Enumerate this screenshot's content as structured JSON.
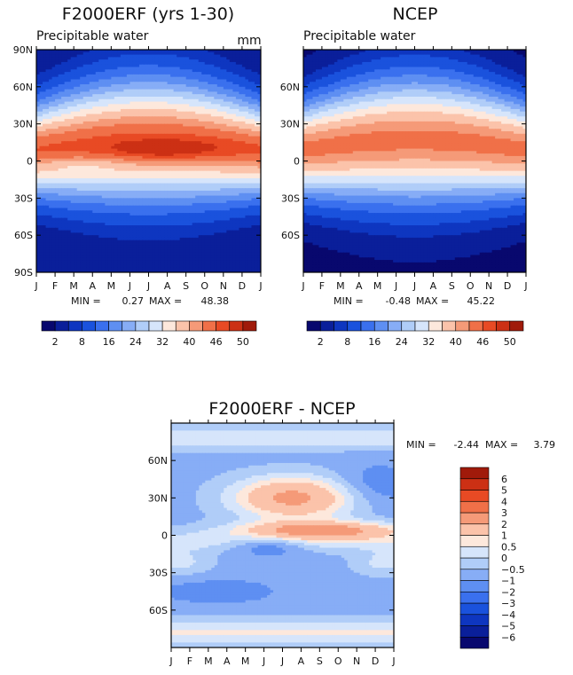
{
  "chart_data": [
    {
      "type": "heatmap",
      "title": "F2000ERF (yrs 1-30)",
      "subtitle": "Precipitable water",
      "units": "mm",
      "min_label": "MIN =",
      "min_value": "0.27",
      "max_label": "MAX =",
      "max_value": "48.38",
      "x_ticks": [
        "J",
        "F",
        "M",
        "A",
        "M",
        "J",
        "J",
        "A",
        "S",
        "O",
        "N",
        "D",
        "J"
      ],
      "y_ticks_left": [
        "90N",
        "60N",
        "30N",
        "0",
        "30S",
        "60S",
        "90S"
      ],
      "y_ticks_right": [],
      "ylim": [
        -90,
        90
      ],
      "field": "model"
    },
    {
      "type": "heatmap",
      "title": "NCEP",
      "subtitle": "Precipitable water",
      "units": "",
      "min_label": "MIN =",
      "min_value": "-0.48",
      "max_label": "MAX =",
      "max_value": "45.22",
      "x_ticks": [
        "J",
        "F",
        "M",
        "A",
        "M",
        "J",
        "J",
        "A",
        "S",
        "O",
        "N",
        "D",
        "J"
      ],
      "y_ticks_left": [],
      "y_ticks_right": [
        "60N",
        "30N",
        "0",
        "30S",
        "60S"
      ],
      "ylim": [
        -90,
        90
      ],
      "field": "ncep"
    },
    {
      "type": "heatmap",
      "title": "F2000ERF - NCEP",
      "subtitle": "",
      "units": "",
      "min_label": "MIN =",
      "min_value": "-2.44",
      "max_label": "MAX =",
      "max_value": "3.79",
      "x_ticks": [
        "J",
        "F",
        "M",
        "A",
        "M",
        "J",
        "J",
        "A",
        "S",
        "O",
        "N",
        "D",
        "J"
      ],
      "y_ticks_left": [
        "60N",
        "30N",
        "0",
        "30S",
        "60S"
      ],
      "y_ticks_right": [],
      "ylim": [
        -90,
        90
      ],
      "field": "diff"
    }
  ],
  "colorbars": {
    "pw": {
      "levels": [
        2,
        5,
        8,
        12,
        16,
        20,
        24,
        28,
        32,
        36,
        40,
        43,
        46,
        48,
        50
      ],
      "labels": [
        "2",
        "8",
        "16",
        "24",
        "32",
        "40",
        "46",
        "50"
      ],
      "colors": [
        "#08086e",
        "#0a1f9a",
        "#0e36c0",
        "#1a52dd",
        "#3a70ee",
        "#5e8ff2",
        "#87adf6",
        "#b0cdf8",
        "#d6e5fb",
        "#fde8dc",
        "#fbc3aa",
        "#f59a78",
        "#f07048",
        "#e84a24",
        "#cc3014",
        "#a01a0a"
      ]
    },
    "diff": {
      "levels": [
        -6,
        -5,
        -4,
        -3,
        -2,
        -1,
        -0.5,
        0,
        0.5,
        1,
        2,
        3,
        4,
        5,
        6
      ],
      "labels": [
        "6",
        "5",
        "4",
        "3",
        "2",
        "1",
        "0.5",
        "0",
        "−0.5",
        "−1",
        "−2",
        "−3",
        "−4",
        "−5",
        "−6"
      ],
      "colors": [
        "#08086e",
        "#0a1f9a",
        "#0e36c0",
        "#1a52dd",
        "#3a70ee",
        "#5e8ff2",
        "#87adf6",
        "#b0cdf8",
        "#d6e5fb",
        "#fde8dc",
        "#fbc3aa",
        "#f59a78",
        "#f07048",
        "#e84a24",
        "#cc3014",
        "#a01a0a"
      ]
    }
  }
}
